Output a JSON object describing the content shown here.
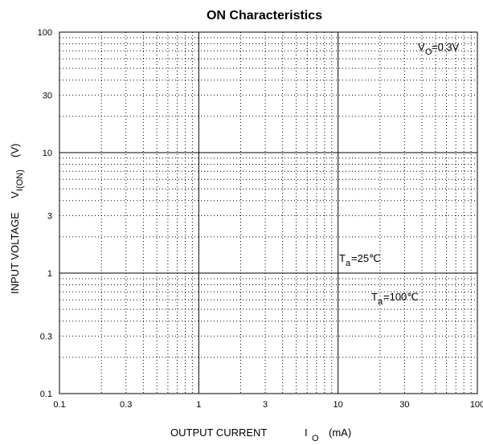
{
  "chart_data": {
    "type": "line",
    "title": "ON Characteristics",
    "x_scale": "log",
    "y_scale": "log",
    "xlim": [
      0.1,
      100
    ],
    "ylim": [
      0.1,
      100
    ],
    "x_ticks": [
      0.1,
      0.3,
      1,
      3,
      10,
      30,
      100
    ],
    "x_tick_labels": [
      "0.1",
      "0.3",
      "1",
      "3",
      "10",
      "30",
      "100"
    ],
    "y_ticks": [
      0.1,
      0.3,
      1,
      3,
      10,
      30,
      100
    ],
    "y_tick_labels": [
      "0.1",
      "0.3",
      "1",
      "3",
      "10",
      "30",
      "100"
    ],
    "xlabel": {
      "main": "OUTPUT CURRENT",
      "symbol": "I",
      "subscript": "O",
      "unit": "(mA)"
    },
    "ylabel": {
      "main": "INPUT VOLTAGE",
      "symbol": "V",
      "subscript": "I(ON)",
      "unit": "(V)"
    },
    "grid": "major solid, minor dotted",
    "annotations": [
      {
        "id": "vo",
        "symbol": "V",
        "subscript": "O",
        "text": "=0.3V"
      },
      {
        "id": "ta25",
        "symbol": "T",
        "subscript": "a",
        "text": "=25℃"
      },
      {
        "id": "ta100",
        "symbol": "T",
        "subscript": "a",
        "text": "=100℃"
      }
    ],
    "series": []
  }
}
